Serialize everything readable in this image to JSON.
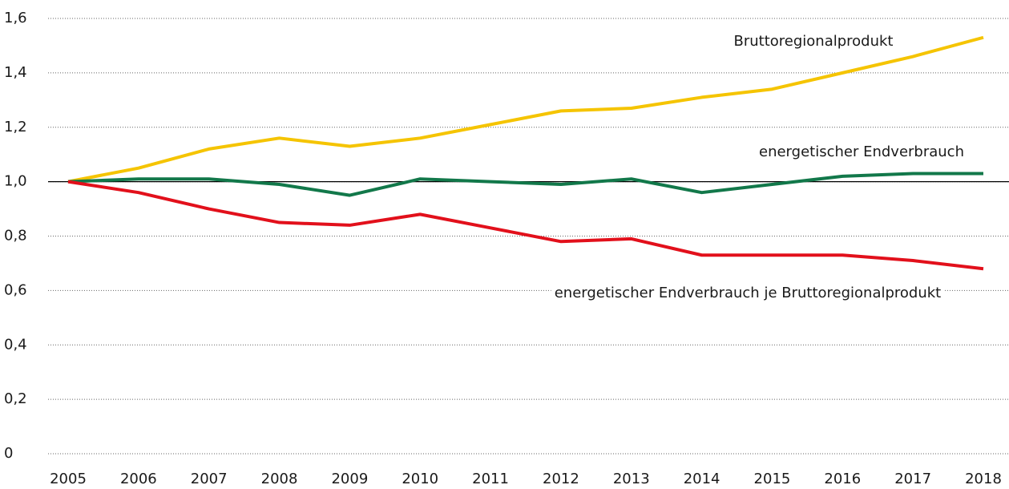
{
  "chart_data": {
    "type": "line",
    "x": [
      2005,
      2006,
      2007,
      2008,
      2009,
      2010,
      2011,
      2012,
      2013,
      2014,
      2015,
      2016,
      2017,
      2018
    ],
    "series": [
      {
        "name": "Bruttoregionalprodukt",
        "color": "#f5c400",
        "values": [
          1.0,
          1.05,
          1.12,
          1.16,
          1.13,
          1.16,
          1.21,
          1.26,
          1.27,
          1.31,
          1.34,
          1.4,
          1.46,
          1.53
        ]
      },
      {
        "name": "energetischer Endverbrauch",
        "color": "#12784a",
        "values": [
          1.0,
          1.01,
          1.01,
          0.99,
          0.95,
          1.01,
          1.0,
          0.99,
          1.01,
          0.96,
          0.99,
          1.02,
          1.03,
          1.03
        ]
      },
      {
        "name": "energetischer Endverbrauch je Bruttoregionalprodukt",
        "color": "#e2101b",
        "values": [
          1.0,
          0.96,
          0.9,
          0.85,
          0.84,
          0.88,
          0.83,
          0.78,
          0.79,
          0.73,
          0.73,
          0.73,
          0.71,
          0.68
        ]
      }
    ],
    "xlim": [
      2005,
      2018
    ],
    "ylim": [
      0,
      1.6
    ],
    "yticks": [
      0,
      {
        "value": 0.2,
        "label": "0,2"
      },
      {
        "value": 0.4,
        "label": "0,4"
      },
      {
        "value": 0.6,
        "label": "0,6"
      },
      {
        "value": 0.8,
        "label": "0,8"
      },
      {
        "value": 1.0,
        "label": "1,0"
      },
      {
        "value": 1.2,
        "label": "1,2"
      },
      {
        "value": 1.4,
        "label": "1,4"
      },
      {
        "value": 1.6,
        "label": "1,6"
      }
    ],
    "reference_line": 1.0,
    "grid": true
  }
}
